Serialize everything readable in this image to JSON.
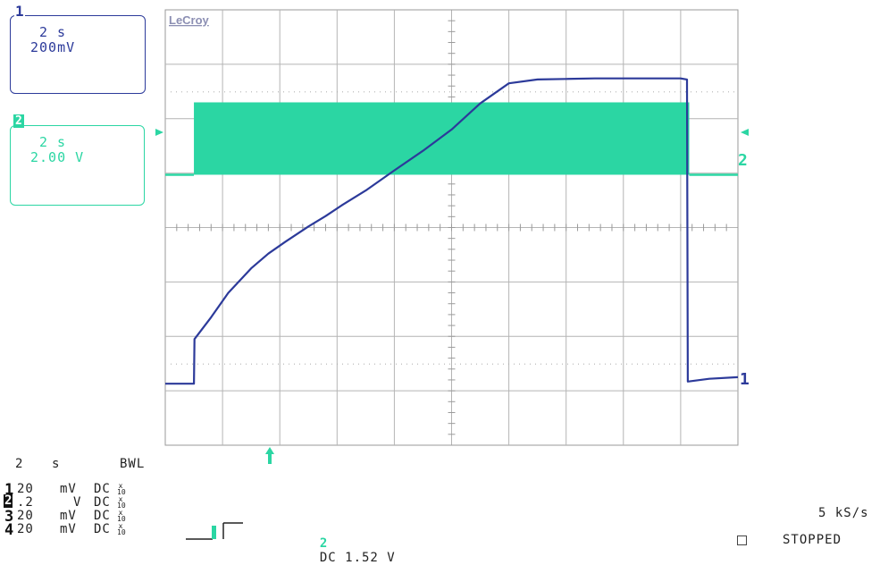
{
  "brand": "LeCroy",
  "channels": {
    "ch1": {
      "num": "1",
      "time": "2 s",
      "volts": "200mV",
      "color": "#2c3a9a"
    },
    "ch2": {
      "num": "2",
      "time": "2 s",
      "volts": "2.00 V",
      "color": "#2bd6a3"
    }
  },
  "markers": {
    "ch1_label": "1",
    "ch2_label": "2"
  },
  "timebase": {
    "value": "2",
    "unit": "s",
    "bwl": "BWL"
  },
  "channel_settings": [
    {
      "num": "1",
      "scale": "20",
      "unit": "mV",
      "coupling": "DC",
      "probe": "x10"
    },
    {
      "num": "2",
      "scale": ".2",
      "unit": "V",
      "coupling": "DC",
      "probe": "x10"
    },
    {
      "num": "3",
      "scale": "20",
      "unit": "mV",
      "coupling": "DC",
      "probe": "x10"
    },
    {
      "num": "4",
      "scale": "20",
      "unit": "mV",
      "coupling": "DC",
      "probe": "x10"
    }
  ],
  "trigger": {
    "channel": "2",
    "text": "DC 1.52 V"
  },
  "sample_rate": "5 kS/s",
  "status": "STOPPED",
  "chart_data": {
    "type": "line",
    "grid": true,
    "x_divisions": 10,
    "y_divisions": 8,
    "x_unit": "s",
    "x_per_div": 2,
    "xlim": [
      0,
      20
    ],
    "ylim_div": [
      -4,
      4
    ],
    "series": [
      {
        "name": "1",
        "color": "#2c3a9a",
        "x": [
          0,
          1.0,
          1.02,
          1.6,
          2.2,
          3.0,
          3.6,
          4.2,
          5.0,
          5.6,
          6.2,
          7.0,
          8.0,
          9.0,
          10.0,
          11.0,
          12.0,
          13.0,
          14.0,
          15.0,
          16.0,
          17.0,
          18.0,
          18.22,
          18.25,
          19.0,
          20.0
        ],
        "y_div": [
          -2.87,
          -2.87,
          -2.05,
          -1.65,
          -1.2,
          -0.75,
          -0.48,
          -0.26,
          0.02,
          0.21,
          0.42,
          0.68,
          1.05,
          1.41,
          1.8,
          2.28,
          2.65,
          2.72,
          2.73,
          2.74,
          2.74,
          2.74,
          2.74,
          2.72,
          -2.83,
          -2.78,
          -2.75
        ]
      },
      {
        "name": "2",
        "color": "#2bd6a3",
        "x": [
          0,
          1.0,
          1.0,
          18.3,
          18.3,
          20.0
        ],
        "y_div": [
          0.97,
          0.97,
          2.3,
          2.3,
          0.97,
          0.97
        ],
        "burst_low_div": 0.97,
        "burst_high_div": 2.3,
        "burst_start": 1.0,
        "burst_end": 18.3
      }
    ]
  }
}
